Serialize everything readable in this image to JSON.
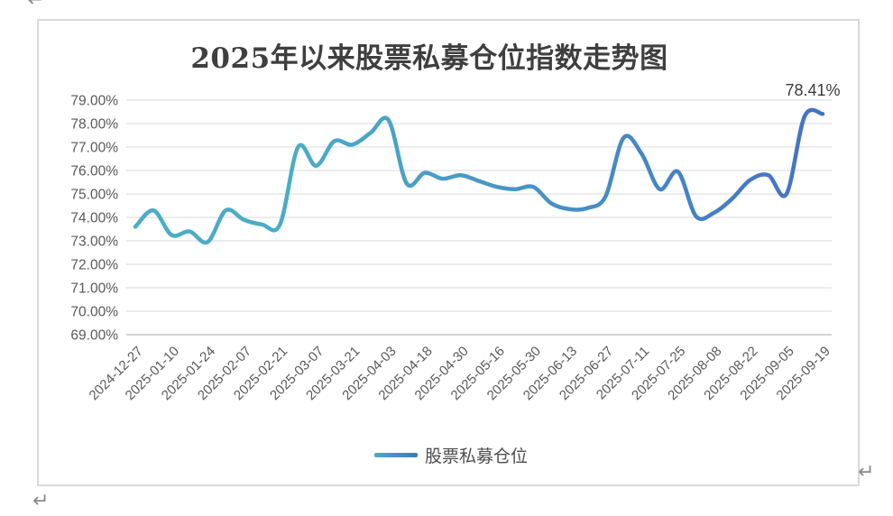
{
  "document": {
    "paragraph_mark": "↵"
  },
  "chart": {
    "title": "2025年以来股票私募仓位指数走势图",
    "data_label": "78.41%",
    "legend_label": "股票私募仓位",
    "colors": {
      "line_start": "#4BACC6",
      "line_end": "#4472C4",
      "grid": "#D9D9D9",
      "axis_line": "#C6C6C6",
      "axis_text": "#595959",
      "title_text": "#3F3F3F",
      "data_label_text": "#3A3A3A",
      "frame_border": "#D9D9D9"
    }
  },
  "chart_data": {
    "type": "line",
    "smooth": true,
    "title": "2025年以来股票私募仓位指数走势图",
    "series_name": "股票私募仓位",
    "unit": "%",
    "ylim": [
      69,
      79
    ],
    "y_ticks": [
      "79.00%",
      "78.00%",
      "77.00%",
      "76.00%",
      "75.00%",
      "74.00%",
      "73.00%",
      "72.00%",
      "71.00%",
      "70.00%",
      "69.00%"
    ],
    "x_labels": [
      "2024-12-27",
      "2025-01-10",
      "2025-01-24",
      "2025-02-07",
      "2025-02-21",
      "2025-03-07",
      "2025-03-21",
      "2025-04-03",
      "2025-04-18",
      "2025-04-30",
      "2025-05-16",
      "2025-05-30",
      "2025-06-13",
      "2025-06-27",
      "2025-07-11",
      "2025-07-25",
      "2025-08-08",
      "2025-08-22",
      "2025-09-05",
      "2025-09-19"
    ],
    "x_label_every": 2,
    "values_pct": [
      73.6,
      74.3,
      73.25,
      73.4,
      72.95,
      74.3,
      73.9,
      73.7,
      73.7,
      77.0,
      76.2,
      77.25,
      77.1,
      77.6,
      78.15,
      75.45,
      75.9,
      75.65,
      75.8,
      75.55,
      75.3,
      75.2,
      75.3,
      74.6,
      74.35,
      74.4,
      74.9,
      77.4,
      76.7,
      75.2,
      75.95,
      74.05,
      74.2,
      74.8,
      75.6,
      75.8,
      75.0,
      78.3,
      78.41
    ],
    "last_point_label": "78.41%",
    "legend_position": "bottom",
    "grid": true
  }
}
